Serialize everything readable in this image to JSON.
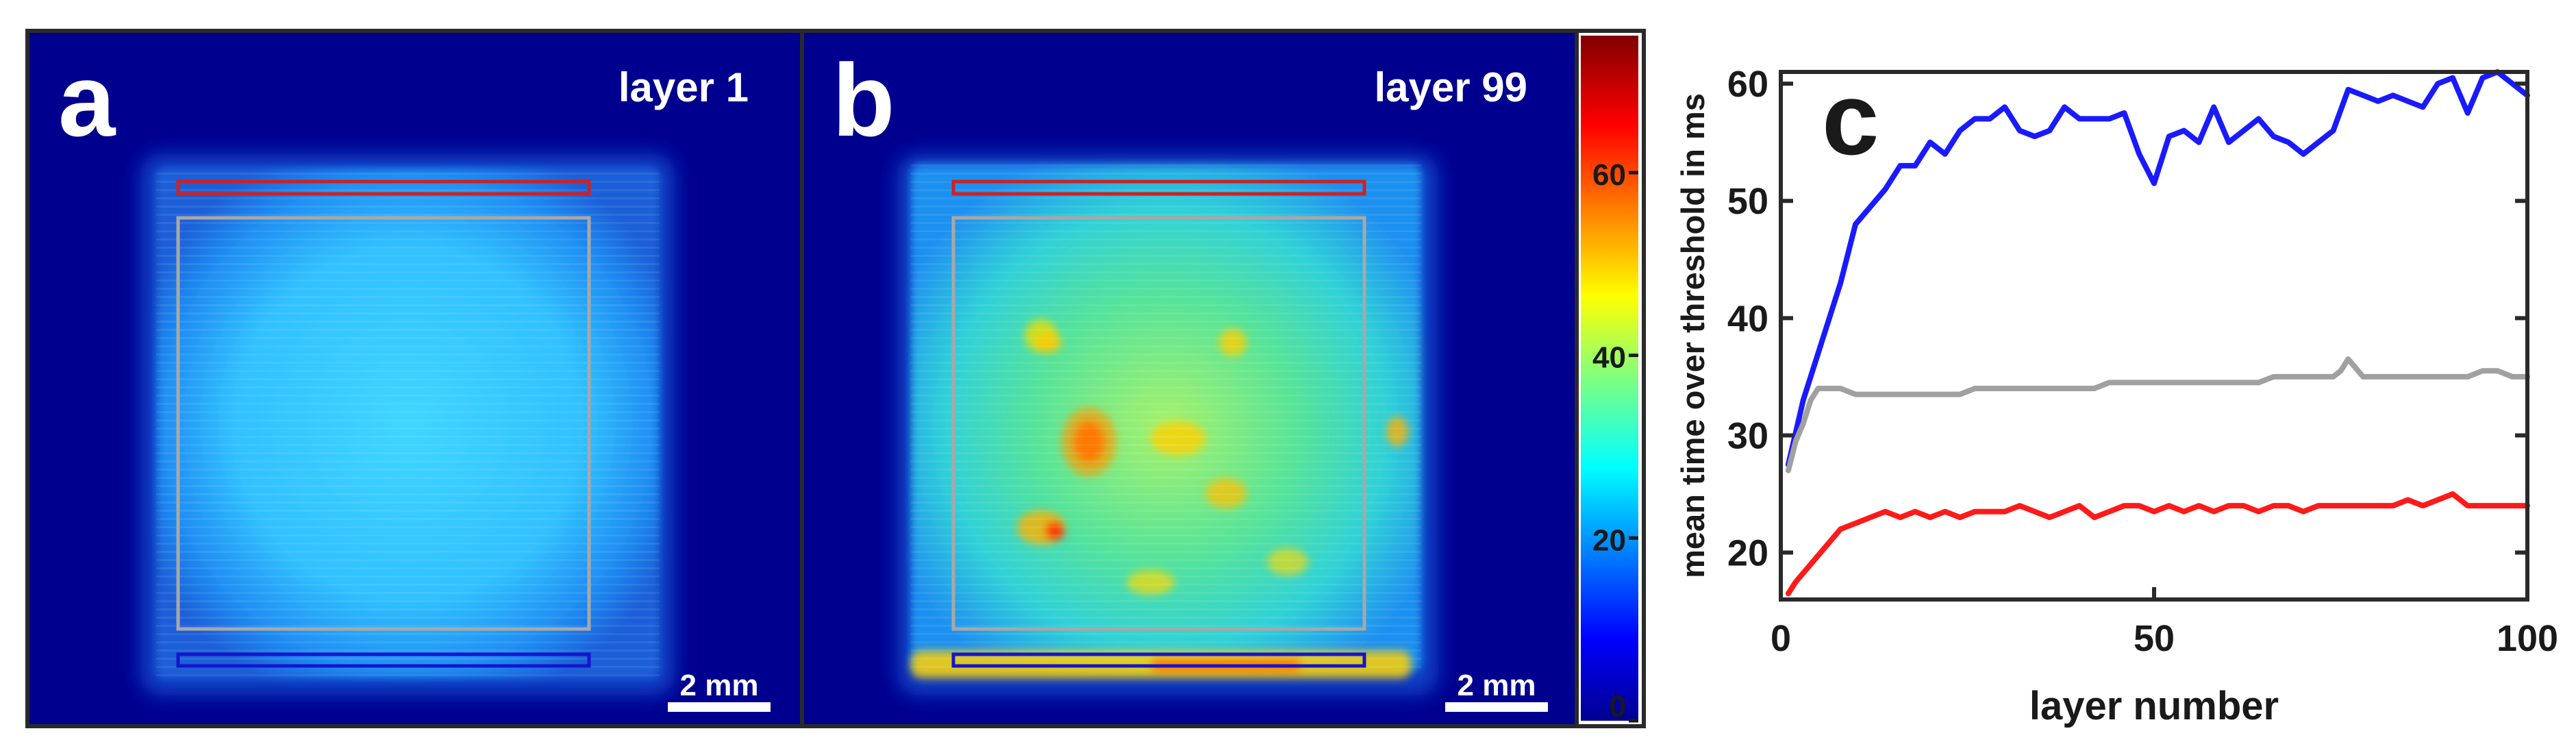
{
  "panels": {
    "a": {
      "letter": "a",
      "layer_label": "layer 1",
      "scalebar_label": "2 mm"
    },
    "b": {
      "letter": "b",
      "layer_label": "layer 99",
      "scalebar_label": "2 mm"
    },
    "c": {
      "letter": "c"
    }
  },
  "colorbar": {
    "ticks": [
      0,
      20,
      40,
      60
    ],
    "min": 0,
    "max": 75,
    "colormap": "jet"
  },
  "roi_colors": {
    "top": "#cc2222",
    "center": "#a8a8a8",
    "bottom": "#1515cc"
  },
  "chart_data": {
    "type": "line",
    "title": "",
    "xlabel": "layer number",
    "ylabel": "mean time over threshold in ms",
    "xlim": [
      0,
      100
    ],
    "ylim": [
      16,
      61
    ],
    "xticks": [
      0,
      50,
      100
    ],
    "yticks": [
      20,
      30,
      40,
      50,
      60
    ],
    "grid": false,
    "series": [
      {
        "color": "#1a1aff",
        "x": [
          1,
          3,
          5,
          8,
          10,
          12,
          14,
          16,
          18,
          20,
          22,
          24,
          26,
          28,
          30,
          32,
          34,
          36,
          38,
          40,
          42,
          44,
          46,
          48,
          50,
          52,
          54,
          56,
          58,
          60,
          62,
          64,
          66,
          68,
          70,
          72,
          74,
          76,
          78,
          80,
          82,
          84,
          86,
          88,
          90,
          92,
          94,
          96,
          98,
          100
        ],
        "y": [
          27.5,
          33,
          37,
          43,
          48,
          49.5,
          51,
          53,
          53,
          55,
          54,
          56,
          57,
          57,
          58,
          56,
          55.5,
          56,
          58,
          57,
          57,
          57,
          57.5,
          54,
          51.5,
          55.5,
          56,
          55,
          58,
          55,
          56,
          57,
          55.5,
          55,
          54,
          55,
          56,
          59.5,
          59,
          58.5,
          59,
          58.5,
          58,
          60,
          60.5,
          57.5,
          60.5,
          61,
          60,
          59
        ]
      },
      {
        "color": "#a0a0a0",
        "x": [
          1,
          2,
          3,
          4,
          5,
          6,
          8,
          10,
          12,
          14,
          16,
          18,
          20,
          22,
          24,
          26,
          28,
          30,
          32,
          34,
          36,
          38,
          40,
          42,
          44,
          46,
          48,
          50,
          52,
          54,
          56,
          58,
          60,
          62,
          64,
          66,
          68,
          70,
          72,
          74,
          75,
          76,
          78,
          80,
          82,
          84,
          86,
          88,
          90,
          92,
          94,
          96,
          98,
          100
        ],
        "y": [
          27,
          29.5,
          31,
          33,
          34,
          34,
          34,
          33.5,
          33.5,
          33.5,
          33.5,
          33.5,
          33.5,
          33.5,
          33.5,
          34,
          34,
          34,
          34,
          34,
          34,
          34,
          34,
          34,
          34.5,
          34.5,
          34.5,
          34.5,
          34.5,
          34.5,
          34.5,
          34.5,
          34.5,
          34.5,
          34.5,
          35,
          35,
          35,
          35,
          35,
          35.5,
          36.5,
          35,
          35,
          35,
          35,
          35,
          35,
          35,
          35,
          35.5,
          35.5,
          35,
          35
        ]
      },
      {
        "color": "#ff1a1a",
        "x": [
          1,
          2,
          4,
          6,
          8,
          10,
          12,
          14,
          16,
          18,
          20,
          22,
          24,
          26,
          28,
          30,
          32,
          34,
          36,
          38,
          40,
          42,
          44,
          46,
          48,
          50,
          52,
          54,
          56,
          58,
          60,
          62,
          64,
          66,
          68,
          70,
          72,
          74,
          76,
          78,
          80,
          82,
          84,
          86,
          88,
          90,
          92,
          94,
          96,
          98,
          100
        ],
        "y": [
          16.5,
          17.5,
          19,
          20.5,
          22,
          22.5,
          23,
          23.5,
          23,
          23.5,
          23,
          23.5,
          23,
          23.5,
          23.5,
          23.5,
          24,
          23.5,
          23,
          23.5,
          24,
          23,
          23.5,
          24,
          24,
          23.5,
          24,
          23.5,
          24,
          23.5,
          24,
          24,
          23.5,
          24,
          24,
          23.5,
          24,
          24,
          24,
          24,
          24,
          24,
          24.5,
          24,
          24.5,
          25,
          24,
          24,
          24,
          24,
          24
        ]
      }
    ]
  }
}
